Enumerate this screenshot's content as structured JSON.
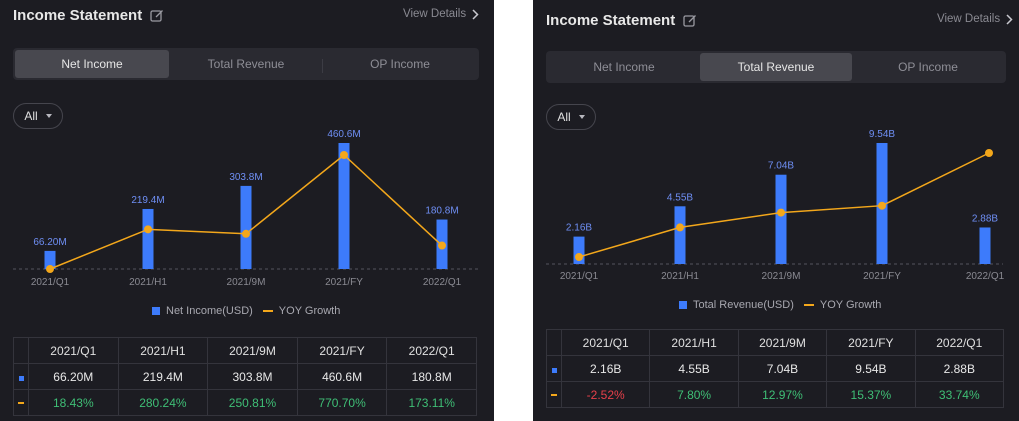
{
  "colors": {
    "bar": "#3d7bfb",
    "line": "#f3a71b",
    "positive": "#3fbf76",
    "negative": "#e8404a"
  },
  "panels": [
    {
      "title": "Income Statement",
      "view_details": "View Details",
      "tabs": [
        "Net Income",
        "Total Revenue",
        "OP Income"
      ],
      "active_tab": 0,
      "filter_label": "All",
      "legend": {
        "bar": "Net Income(USD)",
        "line": "YOY Growth"
      },
      "table": {
        "headers": [
          "2021/Q1",
          "2021/H1",
          "2021/9M",
          "2021/FY",
          "2022/Q1"
        ],
        "values": [
          "66.20M",
          "219.4M",
          "303.8M",
          "460.6M",
          "180.8M"
        ],
        "growth": [
          "18.43%",
          "280.24%",
          "250.81%",
          "770.70%",
          "173.11%"
        ]
      }
    },
    {
      "title": "Income Statement",
      "view_details": "View Details",
      "tabs": [
        "Net Income",
        "Total Revenue",
        "OP Income"
      ],
      "active_tab": 1,
      "filter_label": "All",
      "legend": {
        "bar": "Total Revenue(USD)",
        "line": "YOY Growth"
      },
      "table": {
        "headers": [
          "2021/Q1",
          "2021/H1",
          "2021/9M",
          "2021/FY",
          "2022/Q1"
        ],
        "values": [
          "2.16B",
          "4.55B",
          "7.04B",
          "9.54B",
          "2.88B"
        ],
        "growth": [
          "-2.52%",
          "7.80%",
          "12.97%",
          "15.37%",
          "33.74%"
        ]
      }
    }
  ],
  "chart_data": [
    {
      "type": "bar",
      "title": "Net Income",
      "categories": [
        "2021/Q1",
        "2021/H1",
        "2021/9M",
        "2021/FY",
        "2022/Q1"
      ],
      "series": [
        {
          "name": "Net Income(USD)",
          "type": "bar",
          "values": [
            66.2,
            219.4,
            303.8,
            460.6,
            180.8
          ],
          "unit": "M",
          "labels": [
            "66.20M",
            "219.4M",
            "303.8M",
            "460.6M",
            "180.8M"
          ]
        },
        {
          "name": "YOY Growth",
          "type": "line",
          "values": [
            18.43,
            280.24,
            250.81,
            770.7,
            173.11
          ],
          "unit": "%"
        }
      ]
    },
    {
      "type": "bar",
      "title": "Total Revenue",
      "categories": [
        "2021/Q1",
        "2021/H1",
        "2021/9M",
        "2021/FY",
        "2022/Q1"
      ],
      "series": [
        {
          "name": "Total Revenue(USD)",
          "type": "bar",
          "values": [
            2.16,
            4.55,
            7.04,
            9.54,
            2.88
          ],
          "unit": "B",
          "labels": [
            "2.16B",
            "4.55B",
            "7.04B",
            "9.54B",
            "2.88B"
          ]
        },
        {
          "name": "YOY Growth",
          "type": "line",
          "values": [
            -2.52,
            7.8,
            12.97,
            15.37,
            33.74
          ],
          "unit": "%"
        }
      ]
    }
  ]
}
